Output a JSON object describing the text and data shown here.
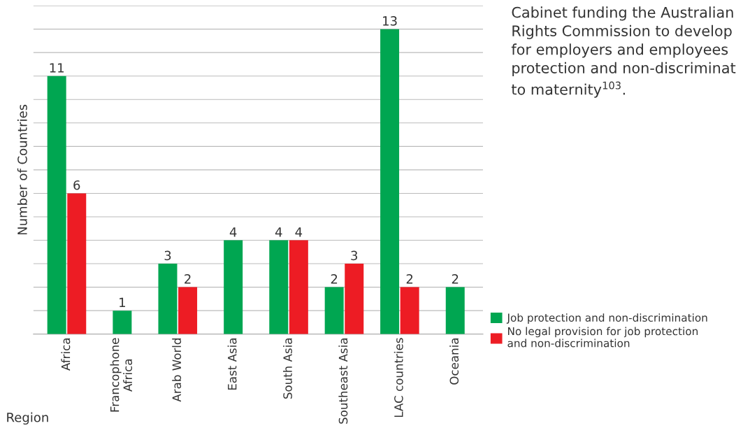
{
  "chart_data": {
    "type": "bar",
    "xlabel": "Region",
    "ylabel": "Number of Countries",
    "categories": [
      "Africa",
      "Francophone\nAfrica",
      "Arab World",
      "East Asia",
      "South Asia",
      "Southeast Asia",
      "LAC countries",
      "Oceania"
    ],
    "series": [
      {
        "name": "Job protection and non-discrimination",
        "color": "#00a651",
        "values": [
          11,
          1,
          3,
          4,
          4,
          2,
          13,
          2
        ]
      },
      {
        "name": "No legal provision for job protection\nand non-discrimination",
        "color": "#ed1c24",
        "values": [
          6,
          null,
          2,
          null,
          4,
          3,
          2,
          null
        ]
      }
    ],
    "ylim": [
      0,
      14
    ],
    "yticks": [
      {
        "value": 1,
        "label": null
      },
      {
        "value": 2,
        "label": null
      },
      {
        "value": 3,
        "label": null
      },
      {
        "value": 4,
        "label": null
      },
      {
        "value": 5,
        "label": null
      },
      {
        "value": 6,
        "label": null
      },
      {
        "value": 7,
        "label": null
      },
      {
        "value": 8,
        "label": null
      },
      {
        "value": 9,
        "label": null
      },
      {
        "value": 10,
        "label": null
      },
      {
        "value": 11,
        "label": null
      },
      {
        "value": 12,
        "label": null
      },
      {
        "value": 13,
        "label": null
      },
      {
        "value": 14,
        "label": null
      }
    ],
    "tick_labels": "x",
    "grid": "y",
    "data_labels": true,
    "legend": "right",
    "annotations": [
      "Cabinet funding the Australian\nRights Commission to develop\nfor employers and employees\nprotection and non-discriminat\nto maternity$^{103}$."
    ]
  }
}
